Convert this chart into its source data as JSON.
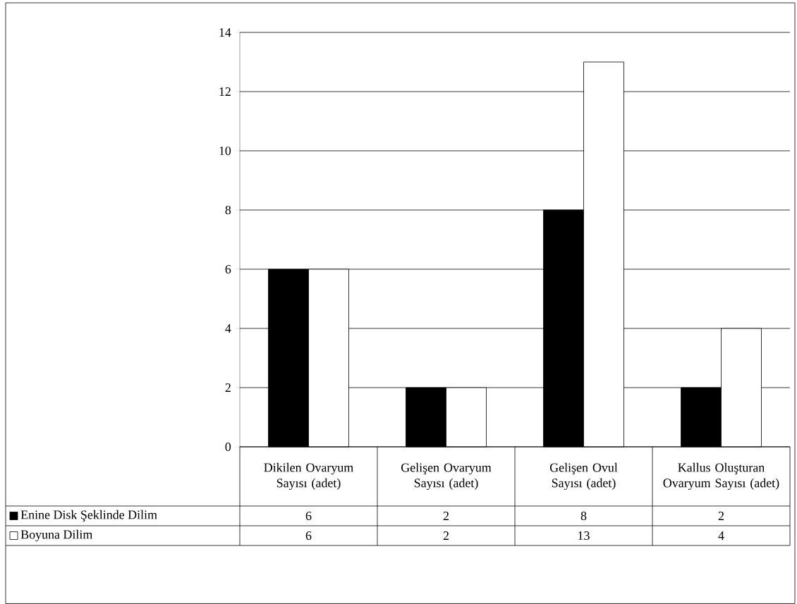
{
  "chart_data": {
    "type": "bar",
    "categories": [
      "Dikilen Ovaryum Sayısı (adet)",
      "Gelişen Ovaryum Sayısı (adet)",
      "Gelişen Ovul Sayısı (adet)",
      "Kallus Oluşturan Ovaryum Sayısı (adet)"
    ],
    "series": [
      {
        "name": "Enine Disk Şeklinde Dilim",
        "color": "#000000",
        "values": [
          6,
          2,
          8,
          2
        ]
      },
      {
        "name": "Boyuna Dilim",
        "color": "#ffffff",
        "values": [
          6,
          2,
          13,
          4
        ]
      }
    ],
    "ylim": [
      0,
      14
    ],
    "yticks": [
      0,
      2,
      4,
      6,
      8,
      10,
      12,
      14
    ],
    "grid": "y",
    "legend": "bottom",
    "data_labels": true
  }
}
